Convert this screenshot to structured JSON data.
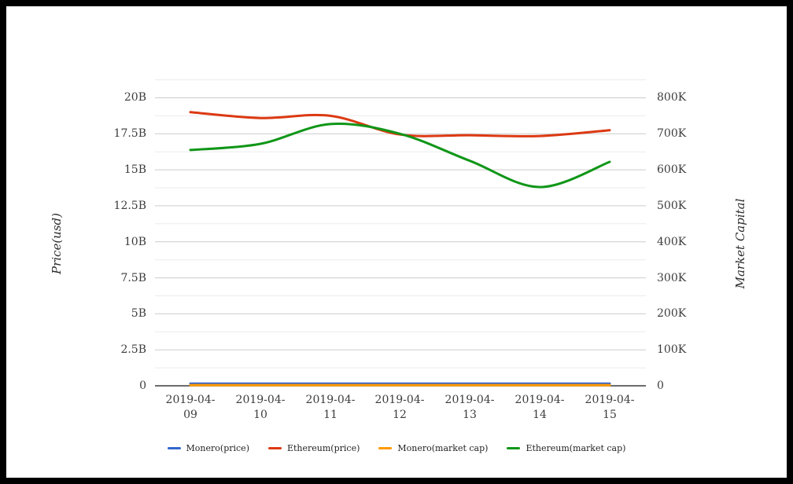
{
  "chart_data": {
    "type": "line",
    "title": "",
    "x_labels": [
      {
        "line1": "2019-04-",
        "line2": "09"
      },
      {
        "line1": "2019-04-",
        "line2": "10"
      },
      {
        "line1": "2019-04-",
        "line2": "11"
      },
      {
        "line1": "2019-04-",
        "line2": "12"
      },
      {
        "line1": "2019-04-",
        "line2": "13"
      },
      {
        "line1": "2019-04-",
        "line2": "14"
      },
      {
        "line1": "2019-04-",
        "line2": "15"
      }
    ],
    "left_axis": {
      "title": "Price(usd)",
      "ticks": [
        "20B",
        "17.5B",
        "15B",
        "12.5B",
        "10B",
        "7.5B",
        "5B",
        "2.5B",
        "0"
      ],
      "range": [
        0,
        20
      ],
      "unit": "billion"
    },
    "right_axis": {
      "title": "Market Capital",
      "ticks": [
        "800K",
        "700K",
        "600K",
        "500K",
        "400K",
        "300K",
        "200K",
        "100K",
        "0"
      ],
      "range": [
        0,
        800
      ],
      "unit": "thousand"
    },
    "series": [
      {
        "name": "Monero(price)",
        "axis": "left",
        "color": "#3366cc",
        "values": [
          0.15,
          0.15,
          0.15,
          0.15,
          0.15,
          0.15,
          0.15
        ]
      },
      {
        "name": "Ethereum(price)",
        "axis": "left",
        "color": "#dc3912",
        "values": [
          19.0,
          18.6,
          18.75,
          17.45,
          17.4,
          17.35,
          17.75
        ]
      },
      {
        "name": "Monero(market cap)",
        "axis": "right",
        "color": "#ff9900",
        "values": [
          2,
          2,
          2,
          2,
          2,
          2,
          2
        ]
      },
      {
        "name": "Ethereum(market cap)",
        "axis": "right",
        "color": "#109618",
        "values": [
          655,
          672,
          727,
          700,
          625,
          552,
          622
        ]
      }
    ],
    "grid": {
      "major_color": "#cccccc",
      "minor_color": "#ebebeb",
      "baseline_color": "#3c3c3c",
      "legend_position": "bottom"
    }
  }
}
